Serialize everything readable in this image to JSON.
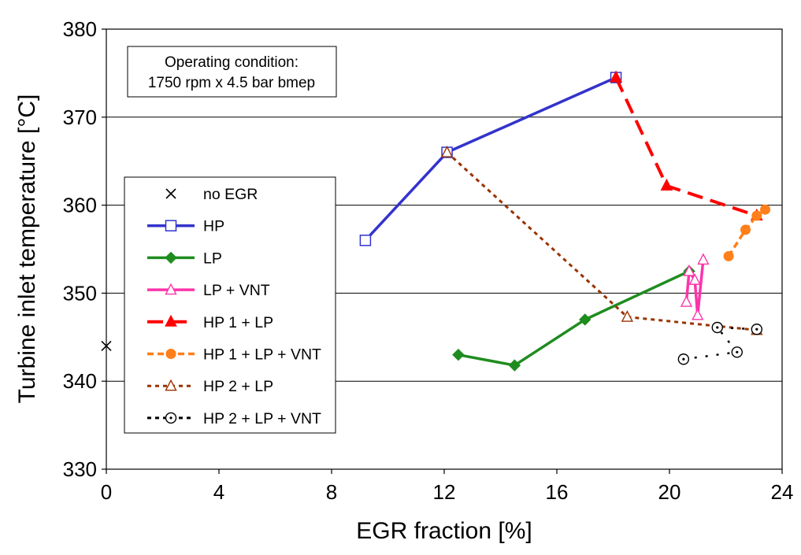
{
  "chart_data": {
    "type": "line",
    "xlabel": "EGR fraction [%]",
    "ylabel": "Turbine inlet temperature [°C]",
    "xlim": [
      0,
      24
    ],
    "ylim": [
      330,
      380
    ],
    "xticks": [
      "0",
      "4",
      "8",
      "12",
      "16",
      "20",
      "24"
    ],
    "yticks": [
      "330",
      "340",
      "350",
      "360",
      "370",
      "380"
    ],
    "grid": "horizontal",
    "legend_placement": "middle-left",
    "annotation": {
      "line1": "Operating condition:",
      "line2": "1750 rpm x 4.5 bar bmep"
    },
    "series": [
      {
        "name": "no EGR",
        "color": "#000000",
        "marker": "x",
        "line": "none",
        "points": [
          [
            0,
            344
          ]
        ]
      },
      {
        "name": "HP",
        "color": "#3333cc",
        "marker": "square-open",
        "line": "solid",
        "points": [
          [
            9.2,
            356
          ],
          [
            12.1,
            366
          ],
          [
            18.1,
            374.5
          ]
        ]
      },
      {
        "name": "LP",
        "color": "#1f8c1f",
        "marker": "diamond",
        "line": "solid",
        "points": [
          [
            12.5,
            343
          ],
          [
            14.5,
            341.8
          ],
          [
            17.0,
            347
          ],
          [
            20.7,
            352.5
          ]
        ]
      },
      {
        "name": "LP + VNT",
        "color": "#ff33aa",
        "marker": "triangle-open",
        "line": "solid",
        "points": [
          [
            20.6,
            349
          ],
          [
            20.7,
            352.5
          ],
          [
            20.9,
            351.5
          ],
          [
            21.0,
            347.5
          ],
          [
            21.2,
            353.8
          ]
        ]
      },
      {
        "name": "HP 1 + LP",
        "color": "#ff0000",
        "marker": "triangle",
        "line": "long-dash",
        "points": [
          [
            18.1,
            374.5
          ],
          [
            19.9,
            362.2
          ],
          [
            23.1,
            358.8
          ]
        ]
      },
      {
        "name": "HP 1 + LP + VNT",
        "color": "#ff7f1a",
        "marker": "circle",
        "line": "dashed",
        "points": [
          [
            22.1,
            354.2
          ],
          [
            22.7,
            357.2
          ],
          [
            23.1,
            358.8
          ],
          [
            23.4,
            359.5
          ]
        ]
      },
      {
        "name": "HP 2 + LP",
        "color": "#993300",
        "marker": "triangle-open",
        "line": "dotted",
        "points": [
          [
            12.1,
            366
          ],
          [
            18.5,
            347.3
          ],
          [
            23.1,
            345.8
          ]
        ]
      },
      {
        "name": "HP 2 + LP + VNT",
        "color": "#000000",
        "marker": "circle-dot",
        "line": "dotted",
        "points": [
          [
            20.5,
            342.5
          ],
          [
            22.4,
            343.3
          ],
          [
            21.7,
            346.1
          ],
          [
            23.1,
            345.9
          ]
        ]
      }
    ]
  }
}
